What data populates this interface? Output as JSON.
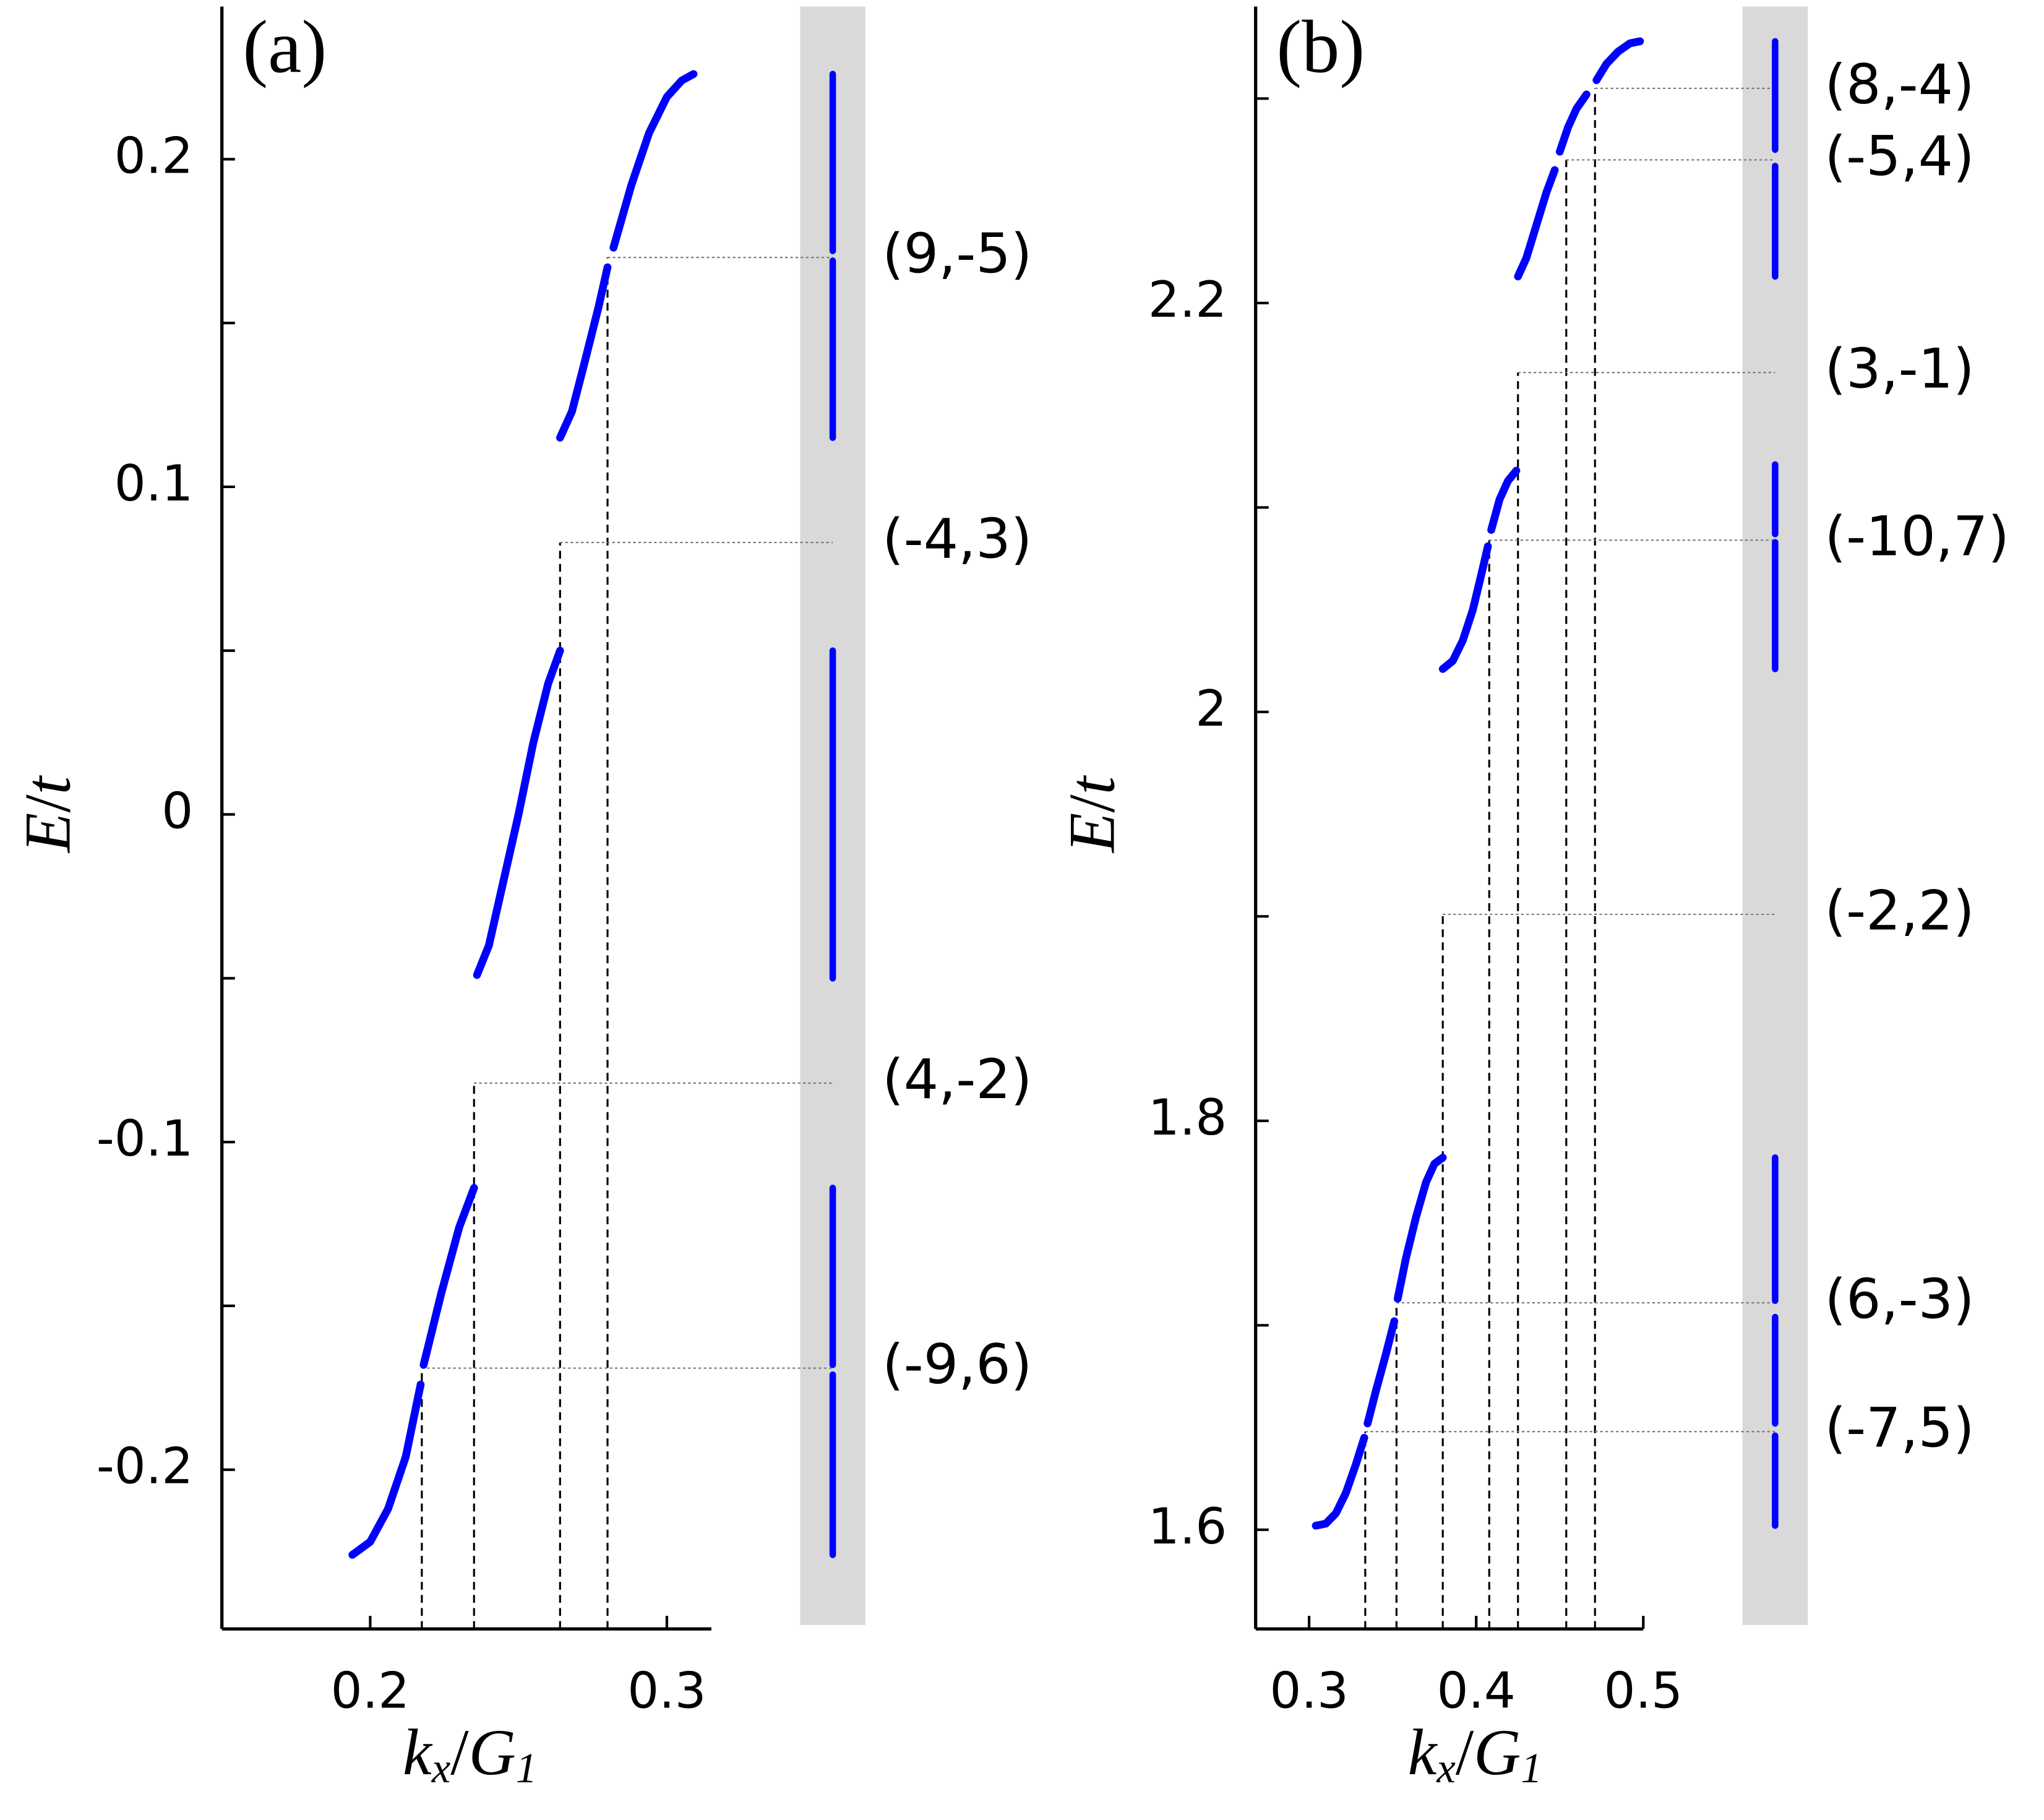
{
  "chart_data": [
    {
      "type": "line",
      "panel_label": "(a)",
      "xlabel": "kx/G1",
      "ylabel": "E/t",
      "xlim": [
        0.15,
        0.315
      ],
      "xticks": [
        0.2,
        0.3
      ],
      "ylim": [
        -0.2486,
        0.2466
      ],
      "yticks": [
        -0.2,
        -0.1,
        0,
        0.1,
        0.2
      ],
      "yminorticks": [
        -0.15,
        -0.05,
        0.05,
        0.15
      ],
      "series": [
        {
          "color": "#0000ff",
          "x": [
            0.194,
            0.2,
            0.206,
            0.212,
            0.217,
            null,
            0.218,
            0.224,
            0.23,
            0.235
          ],
          "values": [
            -0.226,
            -0.222,
            -0.212,
            -0.196,
            -0.174,
            null,
            -0.168,
            -0.146,
            -0.126,
            -0.114
          ]
        },
        {
          "color": "#0000ff",
          "x": [
            0.236,
            0.24,
            0.245,
            0.25,
            0.255,
            0.26,
            0.264
          ],
          "values": [
            -0.049,
            -0.04,
            -0.02,
            0,
            0.022,
            0.04,
            0.05
          ]
        },
        {
          "color": "#0000ff",
          "x": [
            0.264,
            0.268,
            0.272,
            0.277,
            0.28,
            null,
            0.282,
            0.288,
            0.294,
            0.3,
            0.305,
            0.309
          ],
          "values": [
            0.115,
            0.123,
            0.137,
            0.155,
            0.167,
            null,
            0.173,
            0.192,
            0.208,
            0.219,
            0.224,
            0.226
          ]
        }
      ],
      "spectrum": [
        [
          -0.226,
          -0.171
        ],
        [
          -0.168,
          -0.114
        ],
        [
          -0.05,
          0.05
        ],
        [
          0.115,
          0.169
        ],
        [
          0.172,
          0.226
        ]
      ],
      "guides": [
        {
          "label": "(9,-5)",
          "x": 0.28,
          "y": 0.17
        },
        {
          "label": "(-4,3)",
          "x": 0.264,
          "y": 0.083
        },
        {
          "label": "(4,-2)",
          "x": 0.235,
          "y": -0.082
        },
        {
          "label": "(-9,6)",
          "x": 0.2174,
          "y": -0.169
        }
      ]
    },
    {
      "type": "line",
      "panel_label": "(b)",
      "xlabel": "kx/G1",
      "ylabel": "E/t",
      "xlim": [
        0.268,
        0.5
      ],
      "xticks": [
        0.3,
        0.4,
        0.5
      ],
      "ylim": [
        1.5515,
        2.345
      ],
      "yticks": [
        1.6,
        1.8,
        2,
        2.2
      ],
      "yminorticks": [
        1.7,
        1.9,
        2.1,
        2.3
      ],
      "series": [
        {
          "color": "#0000ff",
          "x": [
            0.304,
            0.31,
            0.316,
            0.322,
            0.328,
            0.333,
            null,
            0.335,
            0.34,
            0.346,
            0.351,
            null,
            0.353,
            0.358,
            0.364,
            0.37,
            0.375,
            0.38
          ],
          "values": [
            1.602,
            1.603,
            1.608,
            1.618,
            1.632,
            1.645,
            null,
            1.652,
            1.668,
            1.686,
            1.702,
            null,
            1.713,
            1.733,
            1.753,
            1.77,
            1.779,
            1.782
          ]
        },
        {
          "color": "#0000ff",
          "x": [
            0.38,
            0.386,
            0.392,
            0.398,
            0.403,
            0.407,
            null,
            0.409,
            0.414,
            0.419,
            0.424
          ],
          "values": [
            2.021,
            2.025,
            2.035,
            2.05,
            2.067,
            2.081,
            null,
            2.089,
            2.104,
            2.113,
            2.118
          ]
        },
        {
          "color": "#0000ff",
          "x": [
            0.425,
            0.43,
            0.436,
            0.442,
            0.447,
            null,
            0.45,
            0.455,
            0.46,
            0.466,
            null,
            0.472,
            0.478,
            0.485,
            0.492,
            0.498
          ],
          "values": [
            2.213,
            2.222,
            2.238,
            2.254,
            2.265,
            null,
            2.274,
            2.286,
            2.295,
            2.302,
            null,
            2.309,
            2.317,
            2.323,
            2.327,
            2.328
          ]
        }
      ],
      "spectrum": [
        [
          1.602,
          1.646
        ],
        [
          1.652,
          1.704
        ],
        [
          1.712,
          1.782
        ],
        [
          2.021,
          2.083
        ],
        [
          2.087,
          2.121
        ],
        [
          2.213,
          2.267
        ],
        [
          2.275,
          2.328
        ]
      ],
      "guides": [
        {
          "label": "(8,-4)",
          "x": 0.4711,
          "y": 2.305
        },
        {
          "label": "(-5,4)",
          "x": 0.4539,
          "y": 2.27
        },
        {
          "label": "(3,-1)",
          "x": 0.425,
          "y": 2.166
        },
        {
          "label": "(-10,7)",
          "x": 0.4078,
          "y": 2.084
        },
        {
          "label": "(-2,2)",
          "x": 0.38,
          "y": 1.901
        },
        {
          "label": "(6,-3)",
          "x": 0.3523,
          "y": 1.711
        },
        {
          "label": "(-7,5)",
          "x": 0.3336,
          "y": 1.648
        }
      ]
    }
  ]
}
